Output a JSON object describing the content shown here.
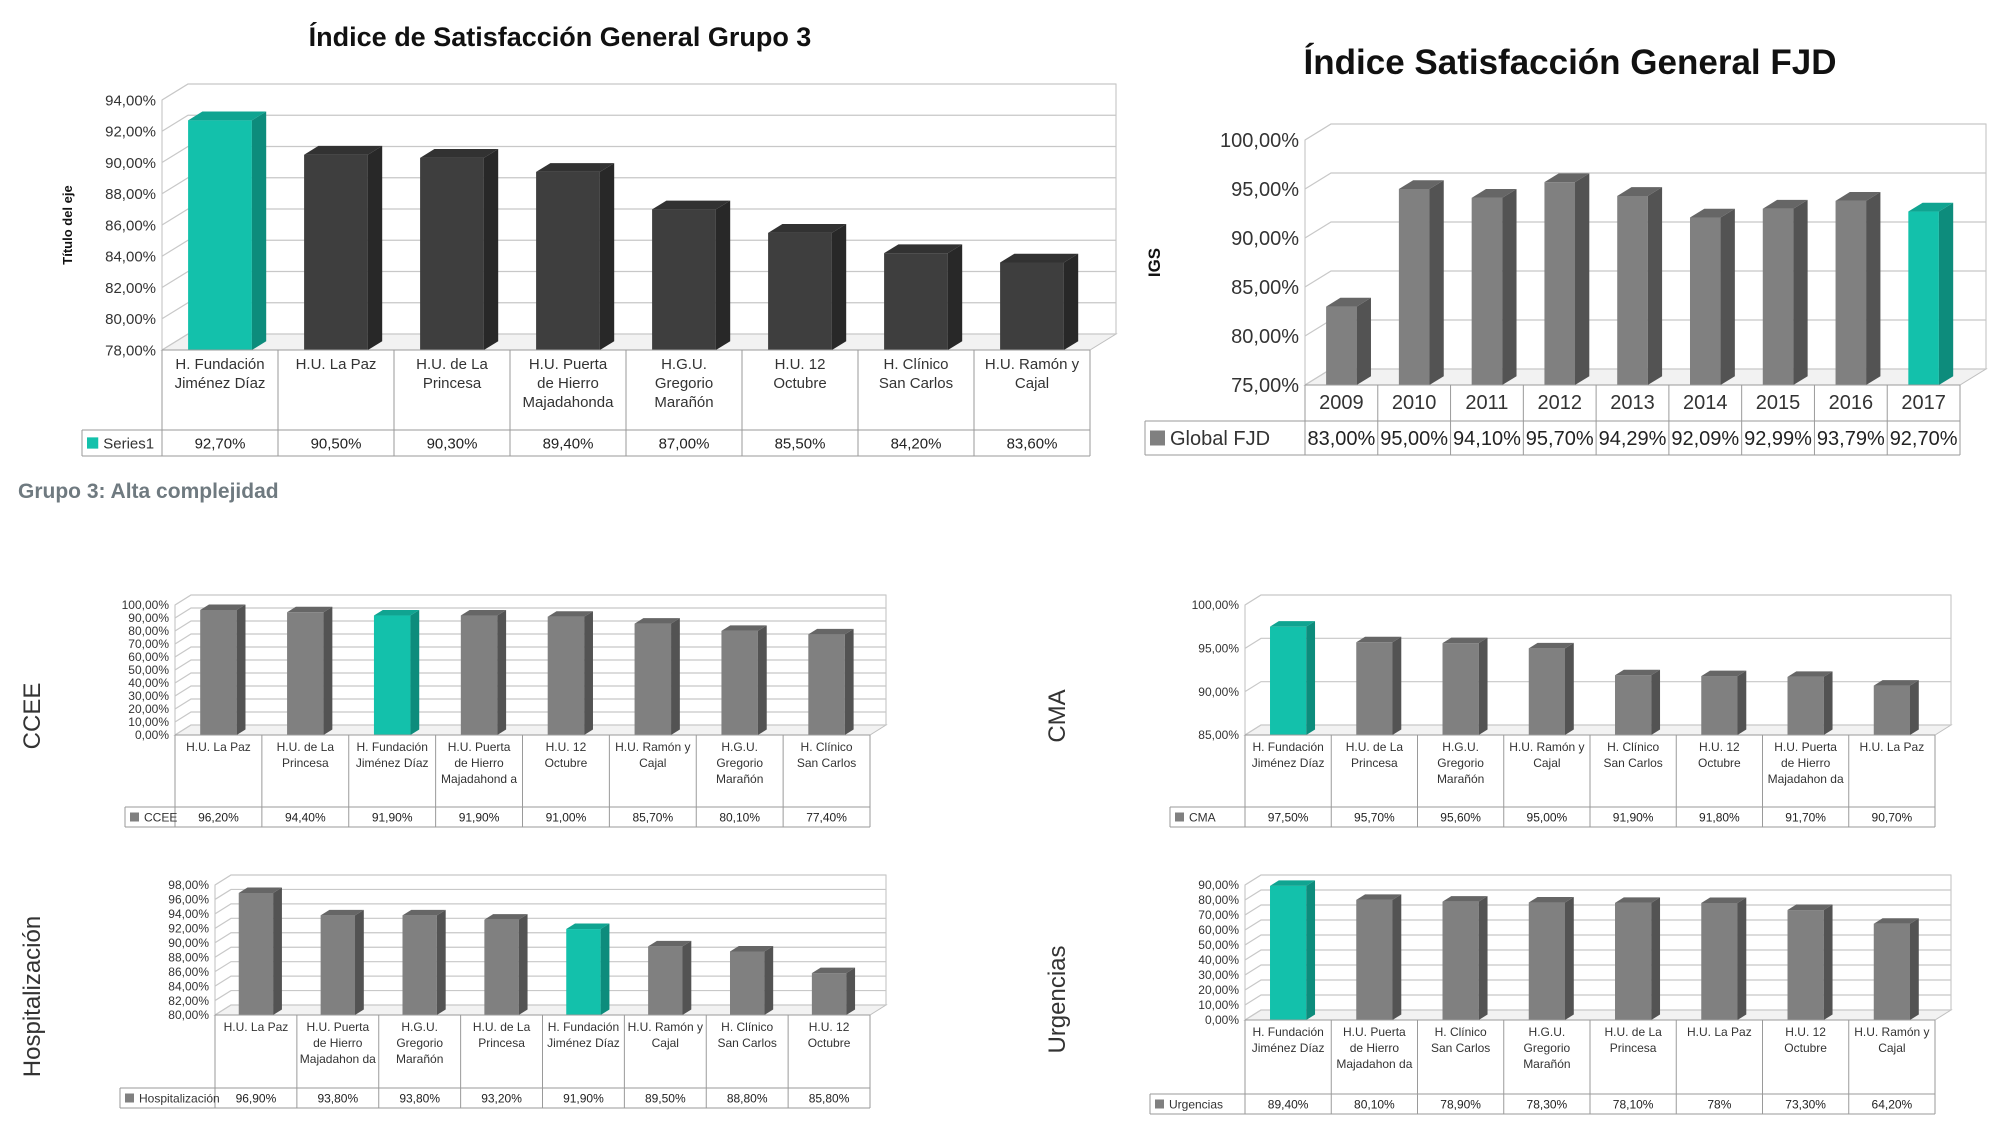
{
  "page": {
    "section_label": "Grupo 3: Alta complejidad"
  },
  "colors": {
    "highlight": "#13c1ab",
    "highlight_dark": "#0d8c7c",
    "dark_bar": "#3e3e3e",
    "gray_bar": "#808080",
    "grid": "#c8c8c8"
  },
  "chart_data": [
    {
      "id": "grupo3",
      "type": "bar",
      "title": "Índice de Satisfacción General Grupo 3",
      "ylabel": "Título del eje",
      "yticks": [
        "94,00%",
        "92,00%",
        "90,00%",
        "88,00%",
        "86,00%",
        "84,00%",
        "82,00%",
        "80,00%",
        "78,00%"
      ],
      "ylim": [
        78,
        94
      ],
      "categories": [
        "H. Fundación Jiménez Díaz",
        "H.U. La Paz",
        "H.U. de La Princesa",
        "H.U. Puerta de Hierro Majadahonda",
        "H.G.U. Gregorio Marañón",
        "H.U. 12 Octubre",
        "H. Clínico San Carlos",
        "H.U. Ramón y Cajal"
      ],
      "series_name": "Series1",
      "values": [
        92.7,
        90.5,
        90.3,
        89.4,
        87.0,
        85.5,
        84.2,
        83.6
      ],
      "value_labels": [
        "92,70%",
        "90,50%",
        "90,30%",
        "89,40%",
        "87,00%",
        "85,50%",
        "84,20%",
        "83,60%"
      ],
      "highlight_index": 0
    },
    {
      "id": "fjd",
      "type": "bar",
      "title": "Índice Satisfacción General FJD",
      "ylabel": "IGS",
      "yticks": [
        "100,00%",
        "95,00%",
        "90,00%",
        "85,00%",
        "80,00%",
        "75,00%"
      ],
      "ylim": [
        75,
        100
      ],
      "categories": [
        "2009",
        "2010",
        "2011",
        "2012",
        "2013",
        "2014",
        "2015",
        "2016",
        "2017"
      ],
      "series_name": "Global FJD",
      "values": [
        83.0,
        95.0,
        94.1,
        95.7,
        94.29,
        92.09,
        92.99,
        93.79,
        92.7
      ],
      "value_labels": [
        "83,00%",
        "95,00%",
        "94,10%",
        "95,70%",
        "94,29%",
        "92,09%",
        "92,99%",
        "93,79%",
        "92,70%"
      ],
      "highlight_index": 8
    },
    {
      "id": "ccee",
      "type": "bar",
      "title": "CCEE",
      "yticks": [
        "100,00%",
        "90,00%",
        "80,00%",
        "70,00%",
        "60,00%",
        "50,00%",
        "40,00%",
        "30,00%",
        "20,00%",
        "10,00%",
        "0,00%"
      ],
      "ylim": [
        0,
        100
      ],
      "categories": [
        "H.U. La Paz",
        "H.U. de La Princesa",
        "H. Fundación Jiménez Díaz",
        "H.U. Puerta de Hierro Majadahond a",
        "H.U. 12 Octubre",
        "H.U. Ramón y Cajal",
        "H.G.U. Gregorio Marañón",
        "H. Clínico San Carlos"
      ],
      "series_name": "CCEE",
      "values": [
        96.2,
        94.4,
        91.9,
        91.9,
        91.0,
        85.7,
        80.1,
        77.4
      ],
      "value_labels": [
        "96,20%",
        "94,40%",
        "91,90%",
        "91,90%",
        "91,00%",
        "85,70%",
        "80,10%",
        "77,40%"
      ],
      "highlight_index": 2
    },
    {
      "id": "cma",
      "type": "bar",
      "title": "CMA",
      "yticks": [
        "100,00%",
        "95,00%",
        "90,00%",
        "85,00%"
      ],
      "ylim": [
        85,
        100
      ],
      "categories": [
        "H. Fundación Jiménez Díaz",
        "H.U. de La Princesa",
        "H.G.U. Gregorio Marañón",
        "H.U. Ramón y Cajal",
        "H. Clínico San Carlos",
        "H.U. 12 Octubre",
        "H.U. Puerta de Hierro Majadahon da",
        "H.U. La Paz"
      ],
      "series_name": "CMA",
      "values": [
        97.5,
        95.7,
        95.6,
        95.0,
        91.9,
        91.8,
        91.7,
        90.7
      ],
      "value_labels": [
        "97,50%",
        "95,70%",
        "95,60%",
        "95,00%",
        "91,90%",
        "91,80%",
        "91,70%",
        "90,70%"
      ],
      "highlight_index": 0
    },
    {
      "id": "hosp",
      "type": "bar",
      "title": "Hospitalización",
      "yticks": [
        "98,00%",
        "96,00%",
        "94,00%",
        "92,00%",
        "90,00%",
        "88,00%",
        "86,00%",
        "84,00%",
        "82,00%",
        "80,00%"
      ],
      "ylim": [
        80,
        98
      ],
      "categories": [
        "H.U. La Paz",
        "H.U. Puerta de Hierro Majadahon da",
        "H.G.U. Gregorio Marañón",
        "H.U. de La Princesa",
        "H. Fundación Jiménez Díaz",
        "H.U. Ramón y Cajal",
        "H. Clínico San Carlos",
        "H.U. 12 Octubre"
      ],
      "series_name": "Hospitalización",
      "values": [
        96.9,
        93.8,
        93.8,
        93.2,
        91.9,
        89.5,
        88.8,
        85.8
      ],
      "value_labels": [
        "96,90%",
        "93,80%",
        "93,80%",
        "93,20%",
        "91,90%",
        "89,50%",
        "88,80%",
        "85,80%"
      ],
      "highlight_index": 4
    },
    {
      "id": "urg",
      "type": "bar",
      "title": "Urgencias",
      "yticks": [
        "90,00%",
        "80,00%",
        "70,00%",
        "60,00%",
        "50,00%",
        "40,00%",
        "30,00%",
        "20,00%",
        "10,00%",
        "0,00%"
      ],
      "ylim": [
        0,
        90
      ],
      "categories": [
        "H. Fundación Jiménez Díaz",
        "H.U. Puerta de Hierro Majadahon da",
        "H. Clínico San Carlos",
        "H.G.U. Gregorio Marañón",
        "H.U. de La Princesa",
        "H.U. La Paz",
        "H.U. 12 Octubre",
        "H.U. Ramón y Cajal"
      ],
      "series_name": "Urgencias",
      "values": [
        89.4,
        80.1,
        78.9,
        78.3,
        78.1,
        78.0,
        73.3,
        64.2
      ],
      "value_labels": [
        "89,40%",
        "80,10%",
        "78,90%",
        "78,30%",
        "78,10%",
        "78%",
        "73,30%",
        "64,20%"
      ],
      "highlight_index": 0
    }
  ]
}
